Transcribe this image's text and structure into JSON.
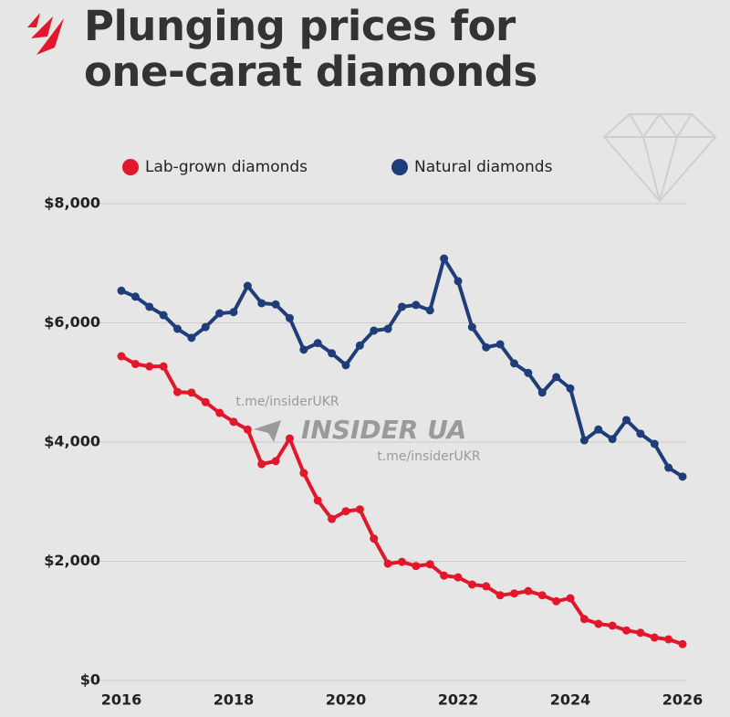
{
  "chart_data": {
    "type": "line",
    "title": "Plunging prices for one-carat diamonds",
    "watermark": [
      "t.me/insiderUKR",
      "INSIDER UA",
      "t.me/insiderUKR"
    ],
    "x": [
      2016,
      2016.25,
      2016.5,
      2016.75,
      2017,
      2017.25,
      2017.5,
      2017.75,
      2018,
      2018.25,
      2018.5,
      2018.75,
      2019,
      2019.25,
      2019.5,
      2019.75,
      2020,
      2020.25,
      2020.5,
      2020.75,
      2021,
      2021.25,
      2021.5,
      2021.75,
      2022,
      2022.25,
      2022.5,
      2022.75,
      2023,
      2023.25,
      2023.5,
      2023.75,
      2024,
      2024.25,
      2024.5,
      2024.75,
      2025,
      2025.25,
      2025.5,
      2025.75,
      2026
    ],
    "series": [
      {
        "name": "Lab-grown diamonds",
        "color": "#e3172b",
        "values": [
          5440,
          5310,
          5270,
          5270,
          4840,
          4830,
          4670,
          4490,
          4340,
          4210,
          3630,
          3680,
          4060,
          3480,
          3020,
          2710,
          2840,
          2870,
          2380,
          1960,
          1990,
          1920,
          1950,
          1760,
          1730,
          1610,
          1580,
          1430,
          1460,
          1500,
          1430,
          1330,
          1380,
          1030,
          950,
          920,
          840,
          800,
          720,
          690,
          610
        ]
      },
      {
        "name": "Natural diamonds",
        "color": "#1f3d78",
        "values": [
          6540,
          6440,
          6270,
          6130,
          5900,
          5750,
          5930,
          6160,
          6180,
          6620,
          6330,
          6310,
          6080,
          5550,
          5660,
          5490,
          5290,
          5620,
          5870,
          5900,
          6270,
          6300,
          6210,
          7080,
          6700,
          5930,
          5590,
          5640,
          5320,
          5160,
          4830,
          5090,
          4900,
          4030,
          4210,
          4050,
          4370,
          4140,
          3970,
          3570,
          3420
        ]
      }
    ],
    "xlim": [
      2016,
      2026
    ],
    "xticks": [
      2016,
      2018,
      2020,
      2022,
      2024,
      2026
    ],
    "ylim": [
      0,
      8000
    ],
    "yticks": [
      {
        "value": 0,
        "label": "$0"
      },
      {
        "value": 2000,
        "label": "$2,000"
      },
      {
        "value": 4000,
        "label": "$4,000"
      },
      {
        "value": 6000,
        "label": "$6,000"
      },
      {
        "value": 8000,
        "label": "$8,000"
      }
    ],
    "grid": true
  }
}
